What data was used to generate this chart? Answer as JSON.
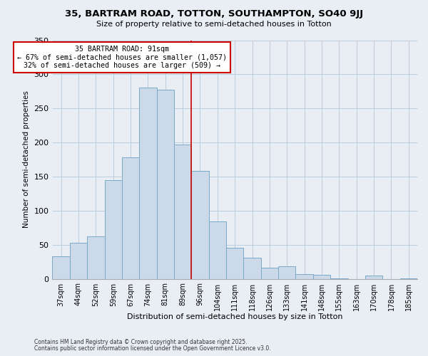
{
  "title": "35, BARTRAM ROAD, TOTTON, SOUTHAMPTON, SO40 9JJ",
  "subtitle": "Size of property relative to semi-detached houses in Totton",
  "xlabel": "Distribution of semi-detached houses by size in Totton",
  "ylabel": "Number of semi-detached properties",
  "bar_labels": [
    "37sqm",
    "44sqm",
    "52sqm",
    "59sqm",
    "67sqm",
    "74sqm",
    "81sqm",
    "89sqm",
    "96sqm",
    "104sqm",
    "111sqm",
    "118sqm",
    "126sqm",
    "133sqm",
    "141sqm",
    "148sqm",
    "155sqm",
    "163sqm",
    "170sqm",
    "178sqm",
    "185sqm"
  ],
  "bar_values": [
    33,
    53,
    62,
    145,
    178,
    281,
    277,
    197,
    158,
    84,
    46,
    31,
    16,
    18,
    7,
    6,
    1,
    0,
    5,
    0,
    1
  ],
  "bar_color": "#ccd9e8",
  "bar_edge_color": "#7aaac8",
  "vline_x_index": 7,
  "vline_color": "#cc0000",
  "annotation_title": "35 BARTRAM ROAD: 91sqm",
  "annotation_line1": "← 67% of semi-detached houses are smaller (1,057)",
  "annotation_line2": "32% of semi-detached houses are larger (509) →",
  "annotation_box_color": "#ffffff",
  "annotation_box_edge": "#cc0000",
  "ylim": [
    0,
    350
  ],
  "yticks": [
    0,
    50,
    100,
    150,
    200,
    250,
    300,
    350
  ],
  "footer1": "Contains HM Land Registry data © Crown copyright and database right 2025.",
  "footer2": "Contains public sector information licensed under the Open Government Licence v3.0.",
  "background_color": "#e8eef4",
  "plot_background": "#e8eef4"
}
